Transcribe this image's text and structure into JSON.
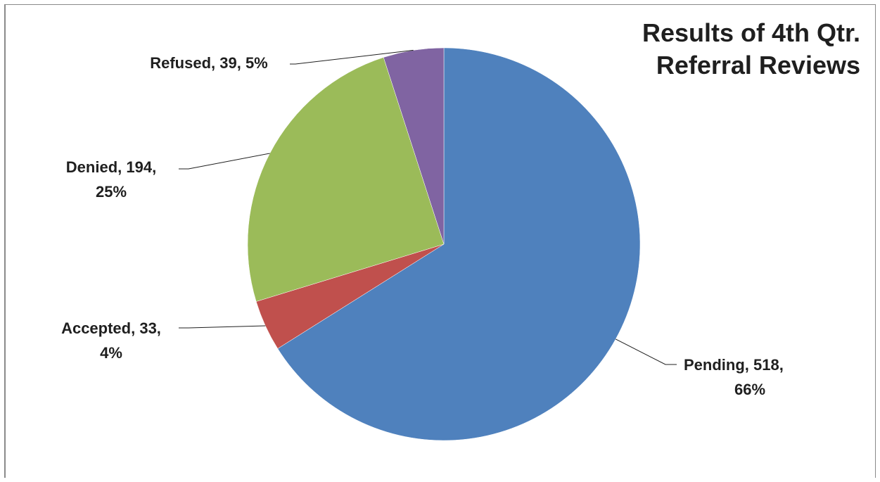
{
  "chart_data": {
    "type": "pie",
    "title_lines": [
      "Results of 4th Qtr.",
      "Referral Reviews"
    ],
    "slices": [
      {
        "name": "Pending",
        "value": 518,
        "percent": "66%",
        "color": "#4f81bd",
        "label_lines": [
          "Pending, 518,",
          "66%"
        ]
      },
      {
        "name": "Accepted",
        "value": 33,
        "percent": "4%",
        "color": "#c0504d",
        "label_lines": [
          "Accepted, 33,",
          "4%"
        ]
      },
      {
        "name": "Denied",
        "value": 194,
        "percent": "25%",
        "color": "#9bbb59",
        "label_lines": [
          "Denied, 194,",
          "25%"
        ]
      },
      {
        "name": "Refused",
        "value": 39,
        "percent": "5%",
        "color": "#8064a2",
        "label_lines": [
          "Refused, 39, 5%"
        ]
      }
    ],
    "start_angle_deg": 0,
    "direction": "clockwise",
    "legend": "none"
  }
}
